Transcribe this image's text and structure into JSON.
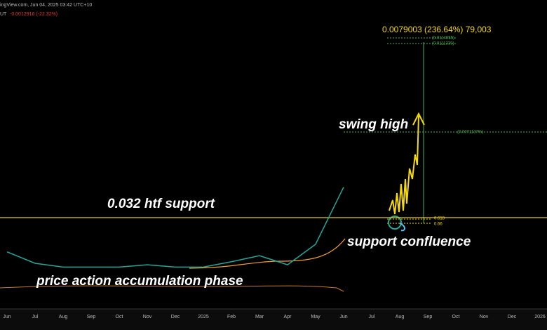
{
  "chart_data": {
    "type": "line",
    "header": {
      "source": "ingView.com, Jun 04, 2025 03:42 UTC+10",
      "symbol": "UT",
      "change": "-0.0012916 (-22.32%)"
    },
    "categories": [
      "Jun",
      "Jul",
      "Aug",
      "Sep",
      "Oct",
      "Nov",
      "Dec",
      "2025",
      "Feb",
      "Mar",
      "Apr",
      "May",
      "Jun",
      "Jul",
      "Aug",
      "Sep",
      "Oct",
      "Nov",
      "Dec",
      "2026"
    ],
    "series": [
      {
        "name": "Price",
        "color": "#26a69a",
        "values": [
          0.0275,
          0.026,
          0.0255,
          0.0255,
          0.0255,
          0.0258,
          0.0255,
          0.0255,
          0.0262,
          0.027,
          0.0258,
          0.0285,
          0.036,
          null,
          null,
          null,
          null,
          null,
          null,
          null
        ]
      }
    ],
    "ylim": [
      0.02,
      0.0593
    ],
    "support_level": 0.032,
    "support_color": "#f5d90a",
    "annotations": {
      "swing_high": "swing high",
      "support": "0.032 htf support",
      "confluence": "support confluence",
      "accumulation": "price action accumulation phase",
      "measure": "0.0079003 (236.64%) 79,003",
      "target_1": "(0.0114055)",
      "target_2": "(0.0111339)",
      "swing_label": "(0.0071137%)",
      "fib_1": "0.618",
      "fib_2": "0.66"
    }
  }
}
